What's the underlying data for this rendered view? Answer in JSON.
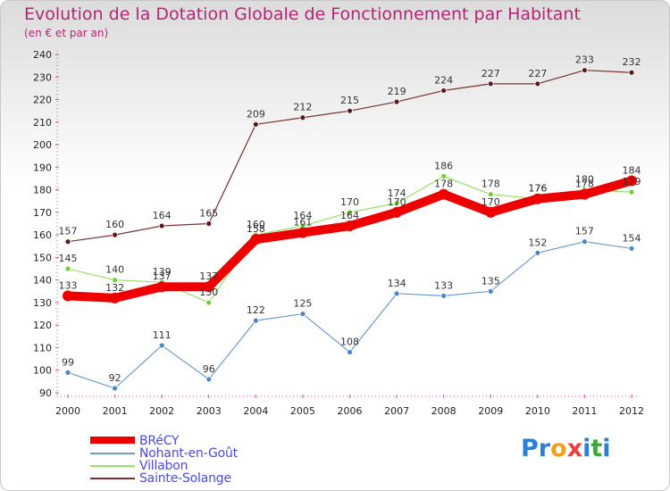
{
  "chart_data": {
    "type": "line",
    "title": "Evolution de la Dotation Globale de Fonctionnement par Habitant",
    "subtitle": "(en € et par an)",
    "categories": [
      "2000",
      "2001",
      "2002",
      "2003",
      "2004",
      "2005",
      "2006",
      "2007",
      "2008",
      "2009",
      "2010",
      "2011",
      "2012"
    ],
    "ylim": [
      90,
      240
    ],
    "yticks": [
      90,
      100,
      110,
      120,
      130,
      140,
      150,
      160,
      170,
      180,
      190,
      200,
      210,
      220,
      230,
      240
    ],
    "grid": false,
    "series": [
      {
        "name": "BRéCY",
        "color": "#ee0000",
        "values": [
          133,
          132,
          137,
          137,
          158,
          161,
          164,
          170,
          178,
          170,
          176,
          178,
          184
        ],
        "labels": [
          "133",
          "132",
          "137",
          "137",
          "158",
          "161",
          "164",
          "170",
          "178",
          "170",
          "176",
          "178",
          "184"
        ]
      },
      {
        "name": "Nohant-en-Goût",
        "color": "#6a9ccc",
        "values": [
          99,
          92,
          111,
          96,
          122,
          125,
          108,
          134,
          133,
          135,
          152,
          157,
          154
        ],
        "labels": [
          "99",
          "92",
          "111",
          "96",
          "122",
          "125",
          "108",
          "134",
          "133",
          "135",
          "152",
          "157",
          "154"
        ]
      },
      {
        "name": "Villabon",
        "color": "#99e066",
        "values": [
          145,
          140,
          139,
          130,
          160,
          164,
          170,
          174,
          186,
          178,
          176,
          180,
          179
        ],
        "labels": [
          "145",
          "140",
          "139",
          "130",
          "160",
          "164",
          "170",
          "174",
          "186",
          "178",
          "176",
          "180",
          "179"
        ]
      },
      {
        "name": "Sainte-Solange",
        "color": "#7a3030",
        "values": [
          157,
          160,
          164,
          165,
          209,
          212,
          215,
          219,
          224,
          227,
          227,
          233,
          232
        ],
        "labels": [
          "157",
          "160",
          "164",
          "165",
          "209",
          "212",
          "215",
          "219",
          "224",
          "227",
          "227",
          "233",
          "232"
        ]
      }
    ]
  },
  "logo": {
    "letters": [
      "P",
      "r",
      "o",
      "x",
      "i",
      "t",
      "i"
    ],
    "colors": [
      "#2b7fd4",
      "#2b7fd4",
      "#f0a020",
      "#e84040",
      "#2b7fd4",
      "#3aa83a",
      "#2b7fd4"
    ]
  }
}
